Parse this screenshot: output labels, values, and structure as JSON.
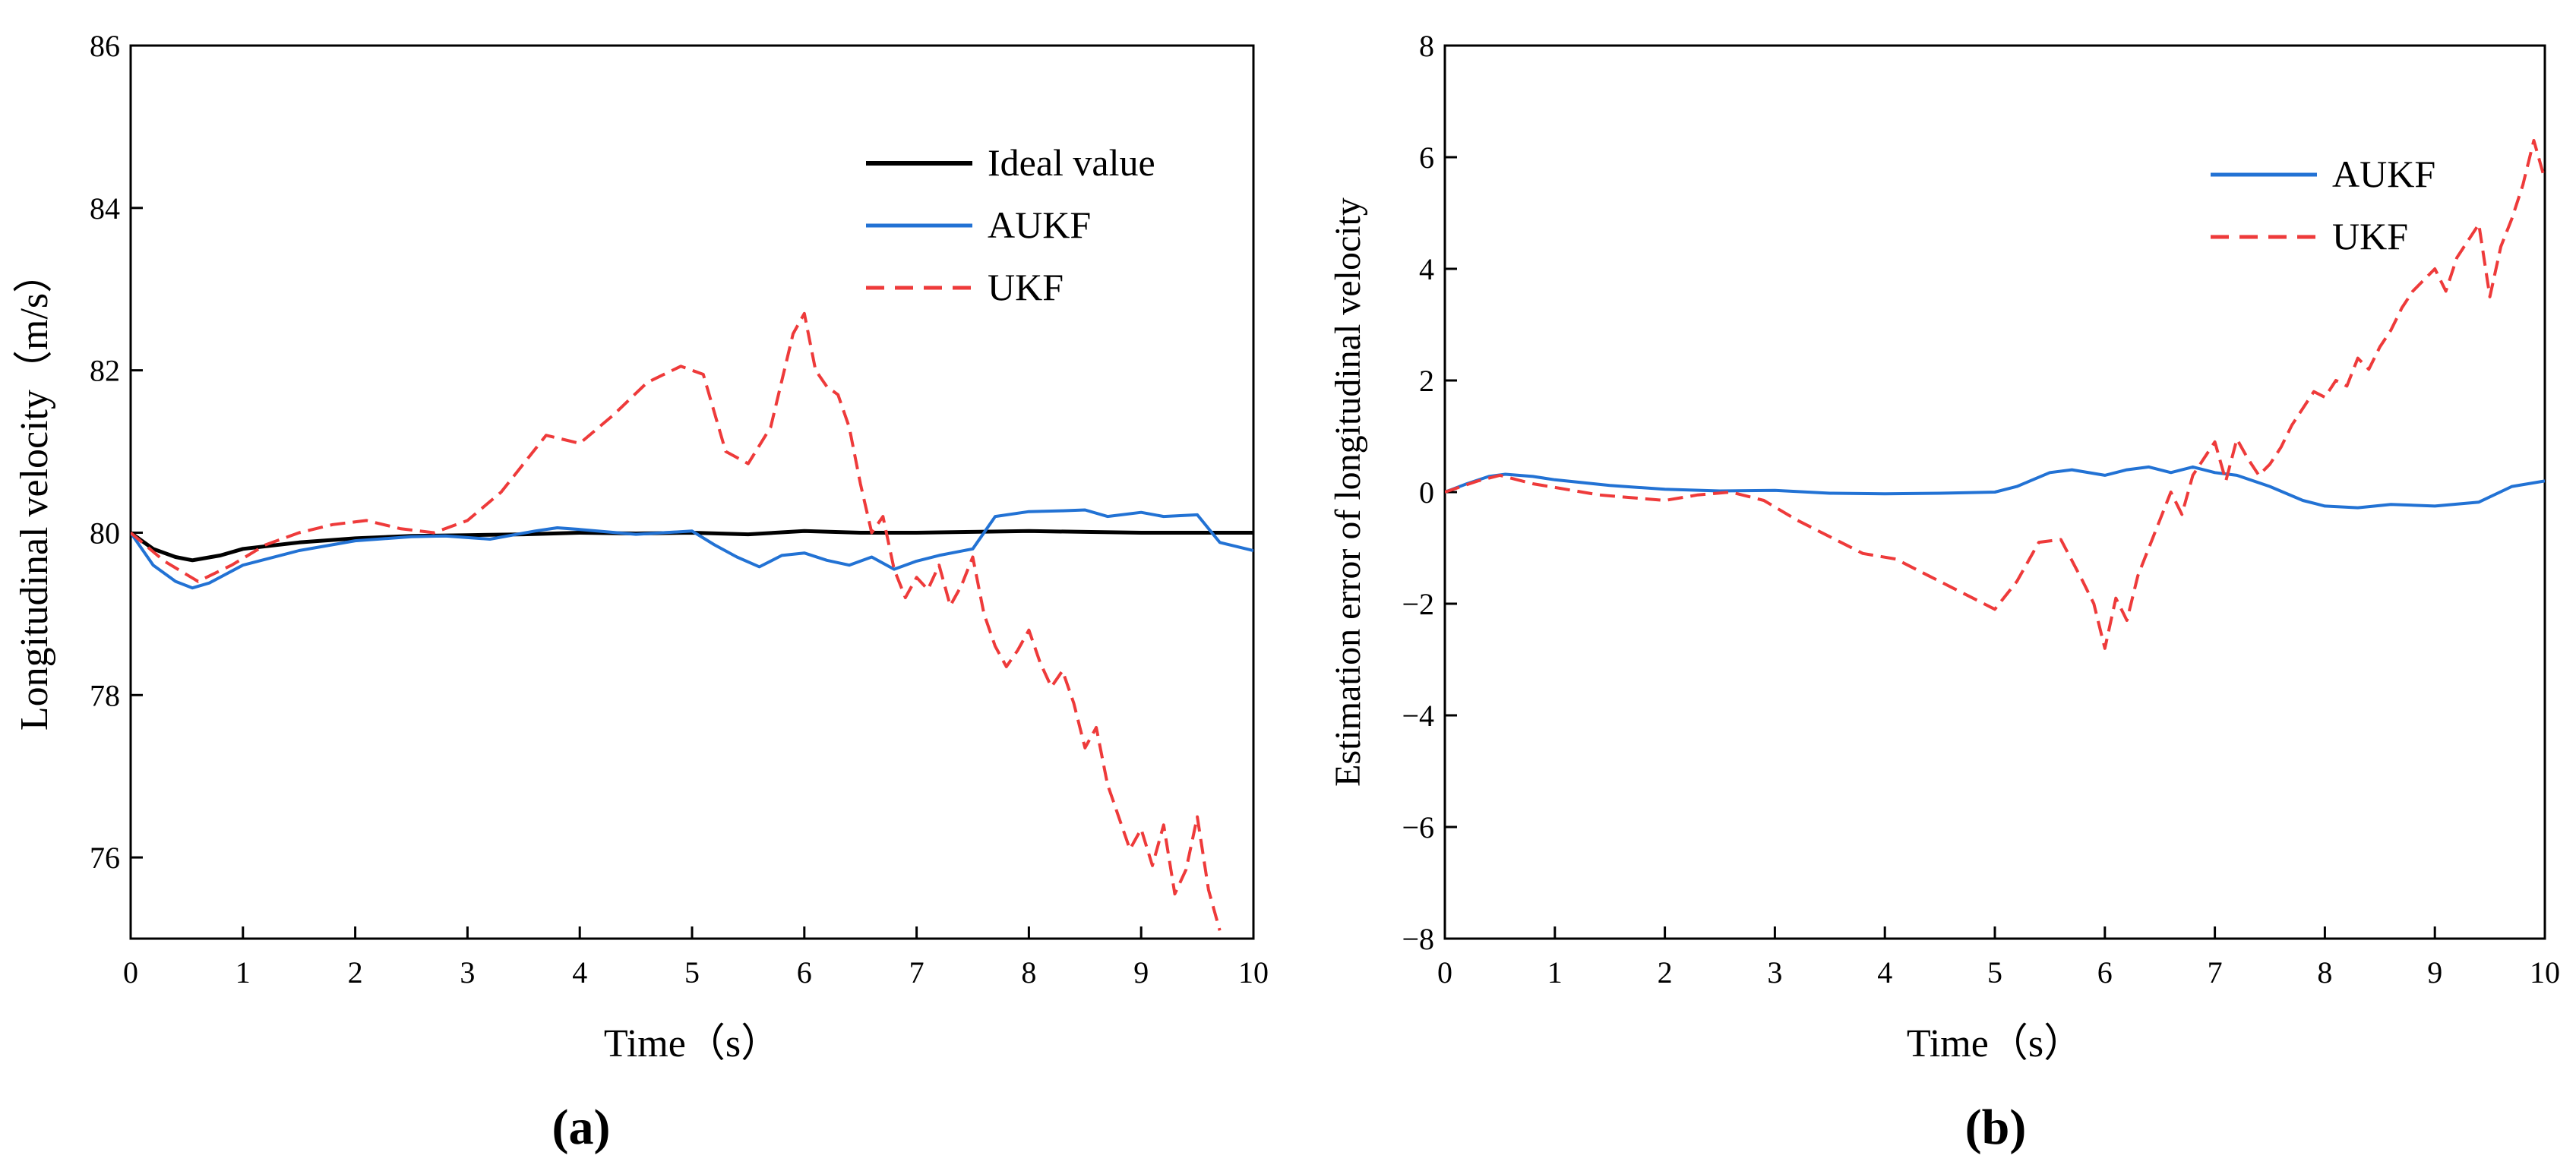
{
  "chart_data": [
    {
      "type": "line",
      "panel_label": "(a)",
      "xlabel": "Time（s）",
      "ylabel": "Longitudinal velocity（m/s）",
      "xlim": [
        0,
        10
      ],
      "ylim": [
        75,
        86
      ],
      "xticks": [
        0,
        1,
        2,
        3,
        4,
        5,
        6,
        7,
        8,
        9,
        10
      ],
      "yticks": [
        76,
        78,
        80,
        82,
        84,
        86
      ],
      "grid": false,
      "legend_position": "top-right",
      "series": [
        {
          "name": "Ideal value",
          "color": "#000000",
          "style": "solid",
          "x": [
            0,
            0.2,
            0.4,
            0.55,
            0.8,
            1,
            1.5,
            2,
            2.5,
            3,
            3.5,
            4,
            4.5,
            5,
            5.5,
            6,
            6.5,
            7,
            7.5,
            8,
            8.5,
            9,
            9.5,
            10
          ],
          "y": [
            80,
            79.8,
            79.7,
            79.66,
            79.72,
            79.8,
            79.88,
            79.93,
            79.96,
            79.97,
            79.98,
            80,
            79.99,
            80,
            79.98,
            80.02,
            80,
            80,
            80.01,
            80.02,
            80.01,
            80,
            80,
            80
          ]
        },
        {
          "name": "AUKF",
          "color": "#2272d4",
          "style": "solid",
          "x": [
            0,
            0.2,
            0.4,
            0.55,
            0.7,
            1,
            1.5,
            2,
            2.5,
            2.8,
            3.2,
            3.6,
            3.8,
            4,
            4.5,
            5,
            5.2,
            5.4,
            5.6,
            5.8,
            6,
            6.2,
            6.4,
            6.6,
            6.8,
            7,
            7.2,
            7.5,
            7.7,
            8,
            8.3,
            8.5,
            8.7,
            9,
            9.2,
            9.5,
            9.7,
            10
          ],
          "y": [
            80,
            79.6,
            79.4,
            79.32,
            79.38,
            79.6,
            79.78,
            79.9,
            79.95,
            79.96,
            79.92,
            80.02,
            80.06,
            80.04,
            79.98,
            80.02,
            79.85,
            79.7,
            79.58,
            79.72,
            79.75,
            79.66,
            79.6,
            79.7,
            79.55,
            79.65,
            79.72,
            79.8,
            80.2,
            80.26,
            80.27,
            80.28,
            80.2,
            80.25,
            80.2,
            80.22,
            79.88,
            79.78
          ]
        },
        {
          "name": "UKF",
          "color": "#ee3a3a",
          "style": "dashed",
          "x": [
            0,
            0.3,
            0.6,
            0.9,
            1.2,
            1.5,
            1.8,
            2.1,
            2.4,
            2.7,
            3,
            3.3,
            3.5,
            3.7,
            4,
            4.3,
            4.6,
            4.9,
            5.1,
            5.3,
            5.5,
            5.7,
            5.9,
            6.0,
            6.1,
            6.2,
            6.3,
            6.4,
            6.5,
            6.6,
            6.7,
            6.8,
            6.9,
            7.0,
            7.1,
            7.2,
            7.3,
            7.4,
            7.5,
            7.6,
            7.7,
            7.8,
            7.9,
            8.0,
            8.1,
            8.2,
            8.3,
            8.4,
            8.5,
            8.6,
            8.7,
            8.8,
            8.9,
            9.0,
            9.1,
            9.2,
            9.3,
            9.4,
            9.5,
            9.6,
            9.7
          ],
          "y": [
            80,
            79.65,
            79.4,
            79.6,
            79.85,
            80.0,
            80.1,
            80.15,
            80.05,
            80.0,
            80.15,
            80.5,
            80.85,
            81.2,
            81.1,
            81.45,
            81.85,
            82.05,
            81.95,
            81.0,
            80.85,
            81.3,
            82.45,
            82.7,
            82.0,
            81.8,
            81.7,
            81.3,
            80.6,
            80.0,
            80.2,
            79.55,
            79.2,
            79.45,
            79.3,
            79.6,
            79.1,
            79.35,
            79.7,
            79.0,
            78.6,
            78.35,
            78.55,
            78.8,
            78.4,
            78.1,
            78.3,
            77.9,
            77.35,
            77.6,
            76.9,
            76.5,
            76.1,
            76.35,
            75.9,
            76.4,
            75.55,
            75.85,
            76.5,
            75.6,
            75.1
          ]
        }
      ]
    },
    {
      "type": "line",
      "panel_label": "(b)",
      "xlabel": "Time（s）",
      "ylabel": "Estimation error of longitudinal velocity",
      "xlim": [
        0,
        10
      ],
      "ylim": [
        -8,
        8
      ],
      "xticks": [
        0,
        1,
        2,
        3,
        4,
        5,
        6,
        7,
        8,
        9,
        10
      ],
      "yticks": [
        -8,
        -6,
        -4,
        -2,
        0,
        2,
        4,
        6,
        8
      ],
      "grid": false,
      "legend_position": "top-right",
      "series": [
        {
          "name": "AUKF",
          "color": "#2272d4",
          "style": "solid",
          "x": [
            0,
            0.2,
            0.4,
            0.55,
            0.8,
            1,
            1.5,
            2,
            2.5,
            3,
            3.5,
            4,
            4.5,
            5,
            5.2,
            5.5,
            5.7,
            6,
            6.2,
            6.4,
            6.6,
            6.8,
            7,
            7.2,
            7.5,
            7.8,
            8,
            8.3,
            8.6,
            9,
            9.4,
            9.7,
            10
          ],
          "y": [
            0,
            0.15,
            0.28,
            0.32,
            0.28,
            0.22,
            0.12,
            0.05,
            0.02,
            0.03,
            -0.02,
            -0.03,
            -0.02,
            0,
            0.1,
            0.35,
            0.4,
            0.3,
            0.4,
            0.45,
            0.35,
            0.45,
            0.35,
            0.3,
            0.1,
            -0.15,
            -0.25,
            -0.28,
            -0.22,
            -0.25,
            -0.18,
            0.1,
            0.2
          ]
        },
        {
          "name": "UKF",
          "color": "#ee3a3a",
          "style": "dashed",
          "x": [
            0,
            0.3,
            0.5,
            0.8,
            1.1,
            1.4,
            1.7,
            2,
            2.3,
            2.6,
            2.9,
            3.2,
            3.5,
            3.8,
            4.1,
            4.4,
            4.7,
            5.0,
            5.2,
            5.4,
            5.6,
            5.8,
            5.9,
            6.0,
            6.1,
            6.2,
            6.3,
            6.4,
            6.5,
            6.6,
            6.7,
            6.8,
            6.9,
            7.0,
            7.1,
            7.2,
            7.3,
            7.4,
            7.5,
            7.6,
            7.7,
            7.8,
            7.9,
            8.0,
            8.1,
            8.2,
            8.3,
            8.4,
            8.5,
            8.6,
            8.7,
            8.8,
            8.9,
            9.0,
            9.1,
            9.2,
            9.3,
            9.4,
            9.5,
            9.6,
            9.7,
            9.8,
            9.9,
            10
          ],
          "y": [
            0,
            0.2,
            0.3,
            0.15,
            0.05,
            -0.05,
            -0.1,
            -0.15,
            -0.05,
            0,
            -0.15,
            -0.5,
            -0.8,
            -1.1,
            -1.2,
            -1.5,
            -1.8,
            -2.1,
            -1.6,
            -0.9,
            -0.85,
            -1.6,
            -2.0,
            -2.8,
            -1.9,
            -2.3,
            -1.5,
            -1.0,
            -0.5,
            0.0,
            -0.4,
            0.3,
            0.6,
            0.9,
            0.2,
            0.95,
            0.6,
            0.3,
            0.5,
            0.8,
            1.2,
            1.5,
            1.8,
            1.7,
            2.0,
            1.9,
            2.4,
            2.2,
            2.6,
            2.9,
            3.3,
            3.6,
            3.8,
            4.0,
            3.6,
            4.2,
            4.5,
            4.8,
            3.5,
            4.4,
            4.9,
            5.5,
            6.3,
            5.6
          ]
        }
      ]
    }
  ]
}
